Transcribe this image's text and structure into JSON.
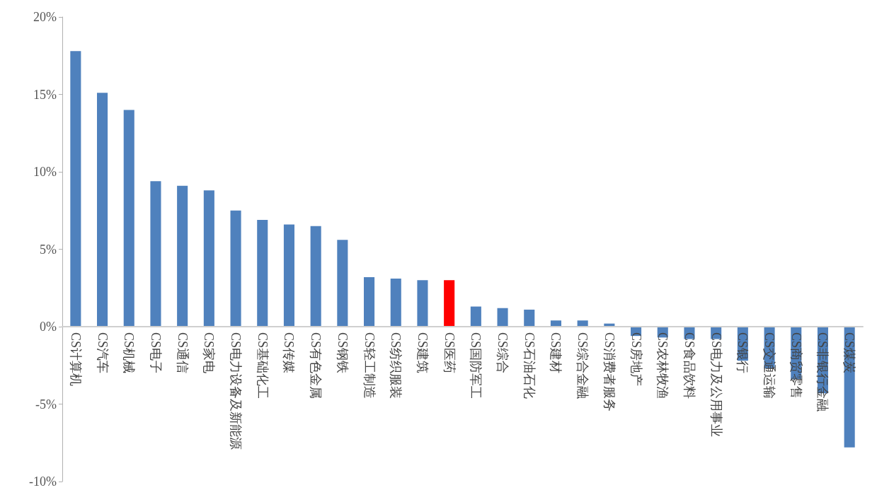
{
  "chart_data": {
    "type": "bar",
    "categories": [
      "CS计算机",
      "CS汽车",
      "CS机械",
      "CS电子",
      "CS通信",
      "CS家电",
      "CS电力设备及新能源",
      "CS基础化工",
      "CS传媒",
      "CS有色金属",
      "CS钢铁",
      "CS轻工制造",
      "CS纺织服装",
      "CS建筑",
      "CS医药",
      "CS国防军工",
      "CS综合",
      "CS石油石化",
      "CS建材",
      "CS综合金融",
      "CS消费者服务",
      "CS房地产",
      "CS农林牧渔",
      "CS食品饮料",
      "CS电力及公用事业",
      "CS银行",
      "CS交通运输",
      "CS商贸零售",
      "CS非银行金融",
      "CS煤炭"
    ],
    "values": [
      17.8,
      15.1,
      14.0,
      9.4,
      9.1,
      8.8,
      7.5,
      6.9,
      6.6,
      6.5,
      5.6,
      3.2,
      3.1,
      3.0,
      3.0,
      1.3,
      1.2,
      1.1,
      0.4,
      0.4,
      0.2,
      -0.6,
      -0.7,
      -0.8,
      -0.8,
      -2.2,
      -2.7,
      -3.4,
      -4.3,
      -7.8
    ],
    "colors": [
      "#4f81bd",
      "#4f81bd",
      "#4f81bd",
      "#4f81bd",
      "#4f81bd",
      "#4f81bd",
      "#4f81bd",
      "#4f81bd",
      "#4f81bd",
      "#4f81bd",
      "#4f81bd",
      "#4f81bd",
      "#4f81bd",
      "#4f81bd",
      "#ff0000",
      "#4f81bd",
      "#4f81bd",
      "#4f81bd",
      "#4f81bd",
      "#4f81bd",
      "#4f81bd",
      "#4f81bd",
      "#4f81bd",
      "#4f81bd",
      "#4f81bd",
      "#4f81bd",
      "#4f81bd",
      "#4f81bd",
      "#4f81bd",
      "#4f81bd"
    ],
    "ylim": [
      -10,
      20
    ],
    "yticks": [
      {
        "value": -10,
        "label": "-10%"
      },
      {
        "value": -5,
        "label": "-5%"
      },
      {
        "value": 0,
        "label": "0%"
      },
      {
        "value": 5,
        "label": "5%"
      },
      {
        "value": 10,
        "label": "10%"
      },
      {
        "value": 15,
        "label": "15%"
      },
      {
        "value": 20,
        "label": "20%"
      }
    ]
  }
}
